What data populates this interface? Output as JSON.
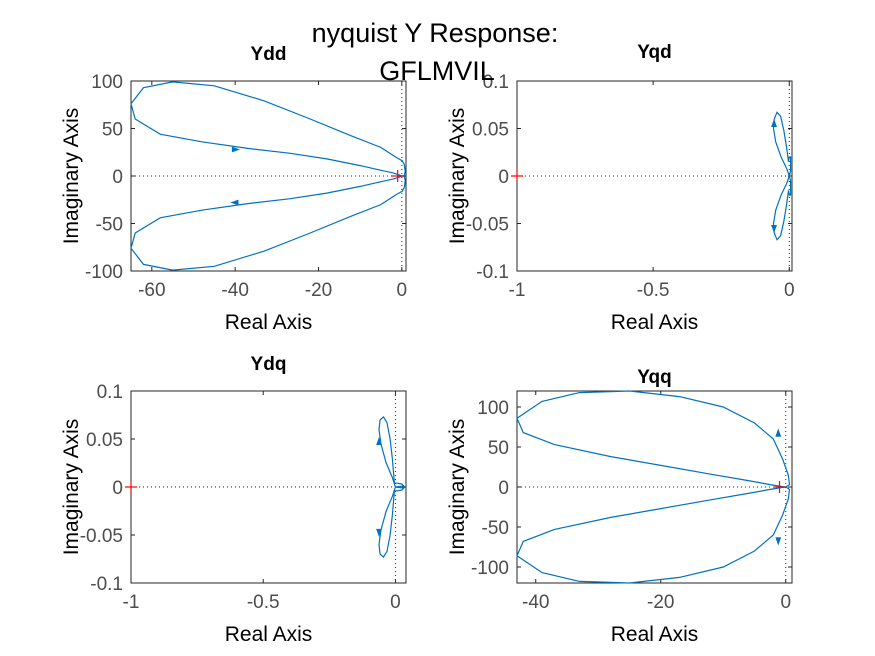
{
  "figure": {
    "suptitle": "nyquist Y Response:",
    "suptitle_line2": "GFLMVIL"
  },
  "chart_data": [
    {
      "type": "line",
      "title": "Ydd",
      "xlabel": "Real Axis",
      "ylabel": "Imaginary Axis",
      "xlim": [
        -65,
        1
      ],
      "ylim": [
        -100,
        100
      ],
      "xticks": [
        -60,
        -40,
        -20,
        0
      ],
      "yticks": [
        -100,
        -50,
        0,
        50,
        100
      ],
      "critical_point": [
        -1,
        0
      ],
      "grid": false,
      "series": [
        {
          "x": [
            0,
            0.6,
            0.8,
            0.6,
            0.1,
            -1.5,
            -5,
            -12,
            -22,
            -33,
            -45,
            -55,
            -62,
            -65,
            -64,
            -58,
            -48,
            -37,
            -27,
            -18,
            -10,
            -5,
            -2,
            -0.5,
            0
          ],
          "y": [
            0,
            0.4,
            5,
            12,
            16,
            20,
            30,
            42,
            60,
            79,
            95,
            99,
            93,
            76,
            60,
            44,
            36,
            29,
            24,
            18,
            11,
            6,
            3,
            1,
            0
          ]
        },
        {
          "x": [
            0,
            0.6,
            0.8,
            0.6,
            0.1,
            -1.5,
            -5,
            -12,
            -22,
            -33,
            -45,
            -55,
            -62,
            -65,
            -64,
            -58,
            -48,
            -37,
            -27,
            -18,
            -10,
            -5,
            -2,
            -0.5,
            0
          ],
          "y": [
            0,
            -0.4,
            -5,
            -12,
            -16,
            -20,
            -30,
            -42,
            -60,
            -79,
            -95,
            -99,
            -93,
            -76,
            -60,
            -44,
            -36,
            -29,
            -24,
            -18,
            -11,
            -6,
            -3,
            -1,
            0
          ]
        }
      ],
      "arrows": [
        {
          "x": -40,
          "y": 27.9,
          "dir": "right"
        },
        {
          "x": -40,
          "y": -27.9,
          "dir": "left"
        }
      ]
    },
    {
      "type": "line",
      "title": "Yqd",
      "xlabel": "Real Axis",
      "ylabel": "Imaginary Axis",
      "xlim": [
        -1,
        0.01
      ],
      "ylim": [
        -0.1,
        0.1
      ],
      "xticks": [
        -1,
        -0.5,
        0
      ],
      "yticks": [
        -0.1,
        -0.05,
        0,
        0.05,
        0.1
      ],
      "critical_point": [
        -1,
        0
      ],
      "grid": false,
      "series": [
        {
          "x": [
            0,
            -0.01,
            -0.03,
            -0.05,
            -0.058,
            -0.055,
            -0.045,
            -0.032,
            -0.02,
            -0.01,
            -0.003,
            0,
            0.005,
            0.005,
            0
          ],
          "y": [
            0,
            0.008,
            0.02,
            0.036,
            0.05,
            0.06,
            0.067,
            0.063,
            0.048,
            0.03,
            0.015,
            0.02,
            0.02,
            0.005,
            0
          ]
        },
        {
          "x": [
            0,
            -0.01,
            -0.03,
            -0.05,
            -0.058,
            -0.055,
            -0.045,
            -0.032,
            -0.02,
            -0.01,
            -0.003,
            0,
            0.005,
            0.005,
            0
          ],
          "y": [
            0,
            -0.008,
            -0.02,
            -0.036,
            -0.05,
            -0.06,
            -0.067,
            -0.063,
            -0.048,
            -0.03,
            -0.015,
            -0.02,
            -0.02,
            -0.005,
            0
          ]
        }
      ],
      "arrows": [
        {
          "x": -0.056,
          "y": 0.055,
          "dir": "up"
        },
        {
          "x": -0.056,
          "y": -0.055,
          "dir": "down"
        }
      ]
    },
    {
      "type": "line",
      "title": "Ydq",
      "xlabel": "Real Axis",
      "ylabel": "Imaginary Axis",
      "xlim": [
        -1,
        0.04
      ],
      "ylim": [
        -0.1,
        0.1
      ],
      "xticks": [
        -1,
        -0.5,
        0
      ],
      "yticks": [
        -0.1,
        -0.05,
        0,
        0.05,
        0.1
      ],
      "critical_point": [
        -1,
        0
      ],
      "grid": false,
      "series": [
        {
          "x": [
            0,
            -0.012,
            -0.035,
            -0.055,
            -0.062,
            -0.058,
            -0.045,
            -0.032,
            -0.02,
            -0.012,
            -0.004,
            0.008,
            0.025,
            0.035,
            0.03,
            0
          ],
          "y": [
            0,
            0.01,
            0.025,
            0.045,
            0.06,
            0.07,
            0.073,
            0.067,
            0.05,
            0.03,
            0.004,
            0.004,
            0.003,
            0,
            -0.001,
            0
          ]
        },
        {
          "x": [
            0,
            -0.012,
            -0.035,
            -0.055,
            -0.062,
            -0.058,
            -0.045,
            -0.032,
            -0.02,
            -0.012,
            -0.004,
            0.008,
            0.025,
            0.035,
            0.03,
            0
          ],
          "y": [
            0,
            -0.01,
            -0.025,
            -0.045,
            -0.06,
            -0.07,
            -0.073,
            -0.067,
            -0.05,
            -0.03,
            -0.004,
            -0.004,
            -0.003,
            0,
            0.001,
            0
          ]
        }
      ],
      "arrows": [
        {
          "x": -0.062,
          "y": 0.047,
          "dir": "up"
        },
        {
          "x": -0.062,
          "y": -0.047,
          "dir": "down"
        }
      ]
    },
    {
      "type": "line",
      "title": "Yqq",
      "xlabel": "Real Axis",
      "ylabel": "Imaginary Axis",
      "xlim": [
        -43,
        1
      ],
      "ylim": [
        -120,
        120
      ],
      "xticks": [
        -40,
        -20,
        0
      ],
      "yticks": [
        -100,
        -50,
        0,
        50,
        100
      ],
      "critical_point": [
        -1,
        0
      ],
      "grid": false,
      "series": [
        {
          "x": [
            0,
            0.6,
            0.4,
            -0.5,
            -2,
            -5,
            -10,
            -17,
            -25,
            -33,
            -39,
            -43,
            -42,
            -37,
            -28,
            -20,
            -12,
            -6,
            -2.5,
            -0.5,
            0
          ],
          "y": [
            0,
            3,
            15,
            35,
            60,
            80,
            100,
            113,
            120,
            118,
            107,
            86,
            68,
            53,
            38,
            27,
            16,
            8,
            3,
            0.5,
            0
          ]
        },
        {
          "x": [
            0,
            0.6,
            0.4,
            -0.5,
            -2,
            -5,
            -10,
            -17,
            -25,
            -33,
            -39,
            -43,
            -42,
            -37,
            -28,
            -20,
            -12,
            -6,
            -2.5,
            -0.5,
            0
          ],
          "y": [
            0,
            -3,
            -15,
            -35,
            -60,
            -80,
            -100,
            -113,
            -120,
            -118,
            -107,
            -86,
            -68,
            -53,
            -38,
            -27,
            -16,
            -8,
            -3,
            -0.5,
            0
          ]
        }
      ],
      "arrows": [
        {
          "x": -1.2,
          "y": 67,
          "dir": "up"
        },
        {
          "x": -1.2,
          "y": -67,
          "dir": "down"
        }
      ]
    }
  ]
}
